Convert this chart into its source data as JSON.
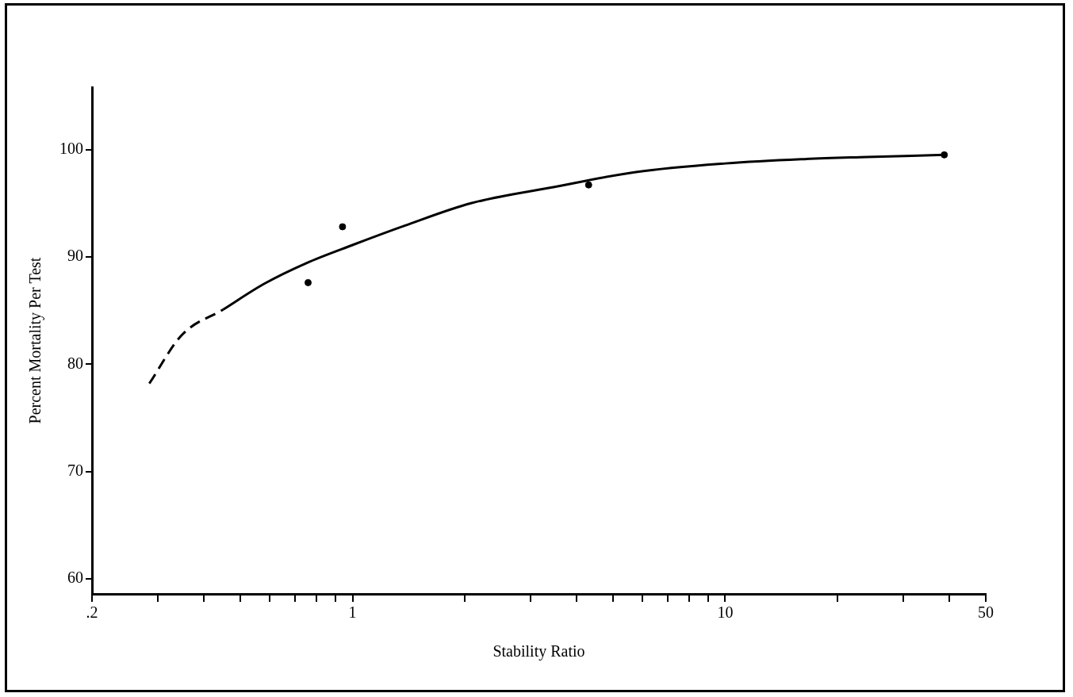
{
  "chart_data": {
    "type": "scatter",
    "xlabel": "Stability Ratio",
    "ylabel": "Percent Mortality Per Test",
    "log": "x",
    "grid": false,
    "legend": false,
    "marker": "circle",
    "xlim": [
      0.2,
      50
    ],
    "xticks": [
      {
        "value": 0.2,
        "label": ".2"
      },
      {
        "value": 0.3,
        "label": null
      },
      {
        "value": 0.4,
        "label": null
      },
      {
        "value": 0.5,
        "label": null
      },
      {
        "value": 0.6,
        "label": null
      },
      {
        "value": 0.7,
        "label": null
      },
      {
        "value": 0.8,
        "label": null
      },
      {
        "value": 0.9,
        "label": null
      },
      1,
      {
        "value": 2,
        "label": null
      },
      {
        "value": 3,
        "label": null
      },
      {
        "value": 4,
        "label": null
      },
      {
        "value": 5,
        "label": null
      },
      {
        "value": 6,
        "label": null
      },
      {
        "value": 7,
        "label": null
      },
      {
        "value": 8,
        "label": null
      },
      {
        "value": 9,
        "label": null
      },
      10,
      {
        "value": 20,
        "label": null
      },
      {
        "value": 30,
        "label": null
      },
      {
        "value": 40,
        "label": null
      },
      50
    ],
    "ylim": [
      58.6,
      105.8
    ],
    "yticks": [
      60,
      70,
      80,
      90,
      100
    ],
    "series": [
      {
        "color": "#000000",
        "x": [
          0.76,
          0.94,
          4.3,
          38.7
        ],
        "values": [
          87.6,
          92.8,
          96.7,
          99.5
        ]
      },
      {
        "type": "line",
        "color": "#000000",
        "marker": "none",
        "line_style": "dashed",
        "x": [
          0.285,
          0.348,
          0.45
        ],
        "values": [
          78.2,
          82.7,
          85.1
        ]
      },
      {
        "type": "line",
        "color": "#000000",
        "marker": "none",
        "line_style": "solid",
        "x": [
          0.45,
          0.58,
          0.75,
          1,
          1.38,
          2.08,
          3.46,
          5.76,
          10,
          16,
          24,
          38.7
        ],
        "values": [
          85.1,
          87.5,
          89.4,
          91.1,
          92.9,
          95.0,
          96.5,
          97.9,
          98.7,
          99.1,
          99.3,
          99.5
        ]
      }
    ]
  }
}
